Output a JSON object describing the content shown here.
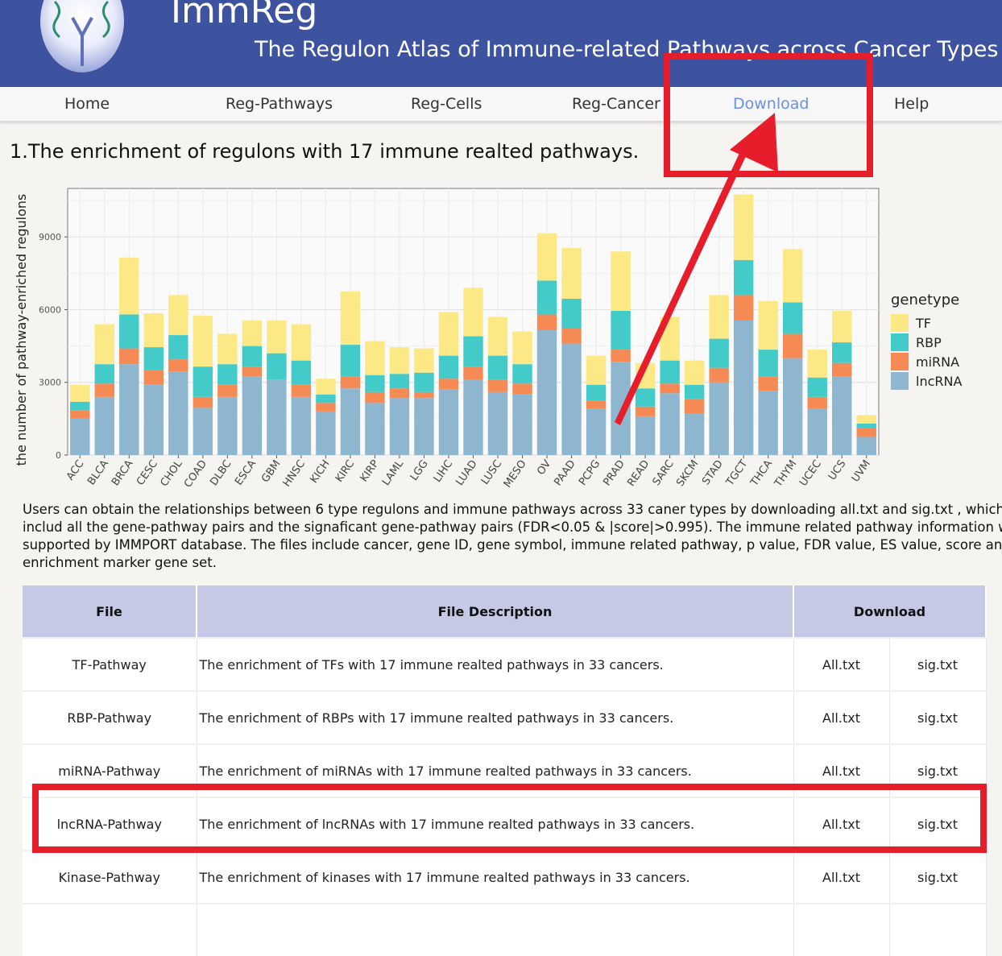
{
  "header": {
    "title": "ImmReg",
    "subtitle": "The Regulon Atlas of Immune-related Pathways across Cancer Types"
  },
  "nav": {
    "items": [
      {
        "label": "Home"
      },
      {
        "label": "Reg-Pathways"
      },
      {
        "label": "Reg-Cells"
      },
      {
        "label": "Reg-Cancer"
      },
      {
        "label": "Download",
        "active": true
      },
      {
        "label": "Help"
      }
    ]
  },
  "section": {
    "title": "1.The enrichment of regulons with 17 immune realted pathways."
  },
  "chart_data": {
    "type": "bar",
    "stacked": true,
    "ylabel": "the number of pathway-enriched regulons",
    "xlabel": "",
    "ylim": [
      0,
      11000
    ],
    "yticks": [
      0,
      3000,
      6000,
      9000
    ],
    "grid": true,
    "legend_title": "genetype",
    "legend_placement": "right",
    "categories": [
      "ACC",
      "BLCA",
      "BRCA",
      "CESC",
      "CHOL",
      "COAD",
      "DLBC",
      "ESCA",
      "GBM",
      "HNSC",
      "KICH",
      "KIRC",
      "KIRP",
      "LAML",
      "LGG",
      "LIHC",
      "LUAD",
      "LUSC",
      "MESO",
      "OV",
      "PAAD",
      "PCPG",
      "PRAD",
      "READ",
      "SARC",
      "SKCM",
      "STAD",
      "TGCT",
      "THCA",
      "THYM",
      "UCEC",
      "UCS",
      "UVM"
    ],
    "series": [
      {
        "name": "lncRNA",
        "color": "#8fb6cf",
        "values": [
          1500,
          2400,
          3750,
          2900,
          3450,
          1950,
          2400,
          3250,
          3100,
          2400,
          1800,
          2750,
          2150,
          2350,
          2350,
          2700,
          3100,
          2600,
          2500,
          5150,
          4600,
          1900,
          3850,
          1600,
          2550,
          1700,
          3000,
          5550,
          2650,
          4000,
          1900,
          3250,
          750
        ]
      },
      {
        "name": "miRNA",
        "color": "#f58a55",
        "values": [
          350,
          550,
          650,
          600,
          500,
          450,
          500,
          400,
          0,
          500,
          350,
          500,
          450,
          400,
          250,
          450,
          550,
          500,
          450,
          650,
          650,
          350,
          500,
          400,
          400,
          600,
          600,
          1050,
          600,
          1000,
          500,
          550,
          350
        ]
      },
      {
        "name": "RBP",
        "color": "#42cbc9",
        "values": [
          350,
          800,
          1400,
          950,
          1000,
          1250,
          850,
          850,
          1100,
          1000,
          350,
          1300,
          700,
          600,
          800,
          950,
          1250,
          1000,
          800,
          1400,
          1200,
          650,
          1600,
          750,
          950,
          600,
          1200,
          1450,
          1100,
          1300,
          800,
          850,
          200
        ]
      },
      {
        "name": "TF",
        "color": "#fce985",
        "values": [
          700,
          1650,
          2350,
          1400,
          1650,
          2100,
          1250,
          1050,
          1350,
          1500,
          650,
          2200,
          1400,
          1100,
          1000,
          1800,
          2000,
          1600,
          1350,
          1950,
          2100,
          1200,
          2450,
          1050,
          1800,
          1000,
          1800,
          2700,
          2000,
          2200,
          1150,
          1300,
          350
        ]
      }
    ]
  },
  "description": {
    "lines": [
      "Users can obtain the relationships between 6 type regulons and immune pathways across 33 caner types by downloading all.txt and sig.txt , which",
      "includ all the gene-pathway pairs and the signaficant gene-pathway pairs (FDR<0.05 & |score|>0.995). The immune related pathway information were",
      "supported by IMMPORT database. The files include cancer, gene ID, gene symbol, immune related pathway, p value, FDR value, ES value, score and the",
      "enrichment marker gene set."
    ]
  },
  "table": {
    "headers": {
      "file": "File",
      "description": "File Description",
      "download": "Download"
    },
    "rows": [
      {
        "file": "TF-Pathway",
        "description": "The enrichment of TFs with 17 immune realted pathways in 33 cancers.",
        "all": "All.txt",
        "sig": "sig.txt"
      },
      {
        "file": "RBP-Pathway",
        "description": "The enrichment of RBPs with 17 immune realted pathways in 33 cancers.",
        "all": "All.txt",
        "sig": "sig.txt"
      },
      {
        "file": "miRNA-Pathway",
        "description": "The enrichment of miRNAs with 17 immune realted pathways in 33 cancers.",
        "all": "All.txt",
        "sig": "sig.txt"
      },
      {
        "file": "lncRNA-Pathway",
        "description": "The enrichment of lncRNAs with 17 immune realted pathways in 33 cancers.",
        "all": "All.txt",
        "sig": "sig.txt"
      },
      {
        "file": "Kinase-Pathway",
        "description": "The enrichment of kinases with 17 immune realted pathways in 33 cancers.",
        "all": "All.txt",
        "sig": "sig.txt"
      },
      {
        "file": "",
        "description": "",
        "all": "",
        "sig": ""
      }
    ]
  },
  "annotation": {
    "color": "#e61e2b"
  }
}
